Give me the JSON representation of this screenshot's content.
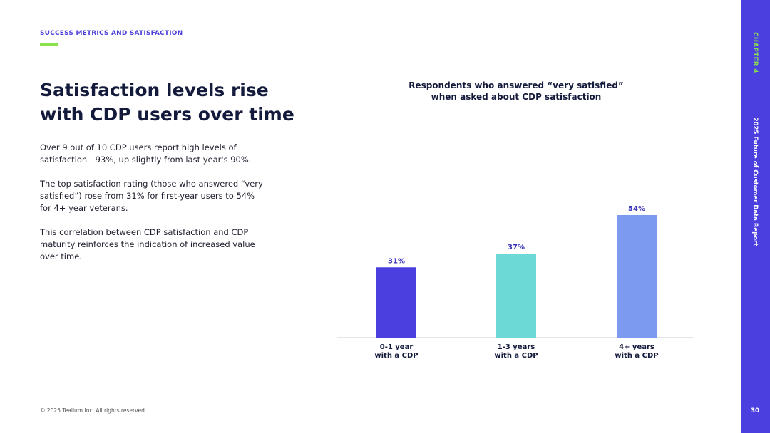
{
  "header": {
    "section_label": "SUCCESS METRICS AND SATISFACTION"
  },
  "headline": {
    "line1": "Satisfaction levels rise",
    "line2": "with CDP users over time"
  },
  "body": {
    "paragraph1": "Over 9 out of 10 CDP users report high levels of satisfaction—93%, up slightly from last year's 90%.",
    "paragraph2": "The top satisfaction rating (those who answered “very satisfied”) rose from 31% for first-year users to 54% for 4+ year veterans.",
    "paragraph3": "This correlation between CDP satisfaction and CDP maturity reinforces the indication of increased value over time."
  },
  "chart_data": {
    "type": "bar",
    "title_lines": [
      "Respondents who answered “very satisfied”",
      "when asked about CDP satisfaction"
    ],
    "categories": [
      [
        "0-1 year",
        "with a CDP"
      ],
      [
        "1-3 years",
        "with a CDP"
      ],
      [
        "4+ years",
        "with a CDP"
      ]
    ],
    "values": [
      31,
      37,
      54
    ],
    "value_labels": [
      "31%",
      "37%",
      "54%"
    ],
    "colors": [
      "#4b3fe0",
      "#6dd9d6",
      "#7b9af0"
    ],
    "ylim": [
      0,
      60
    ],
    "grid": false,
    "axis_color": "#cccccc"
  },
  "footer": {
    "copyright": "© 2025 Tealium Inc. All rights reserved."
  },
  "sidebar": {
    "chapter": "CHAPTER 4",
    "report_title": "2025 Future of Customer Data Report",
    "page_number": "30"
  },
  "colors": {
    "accent": "#4b3fe0",
    "highlight": "#8be04e"
  }
}
